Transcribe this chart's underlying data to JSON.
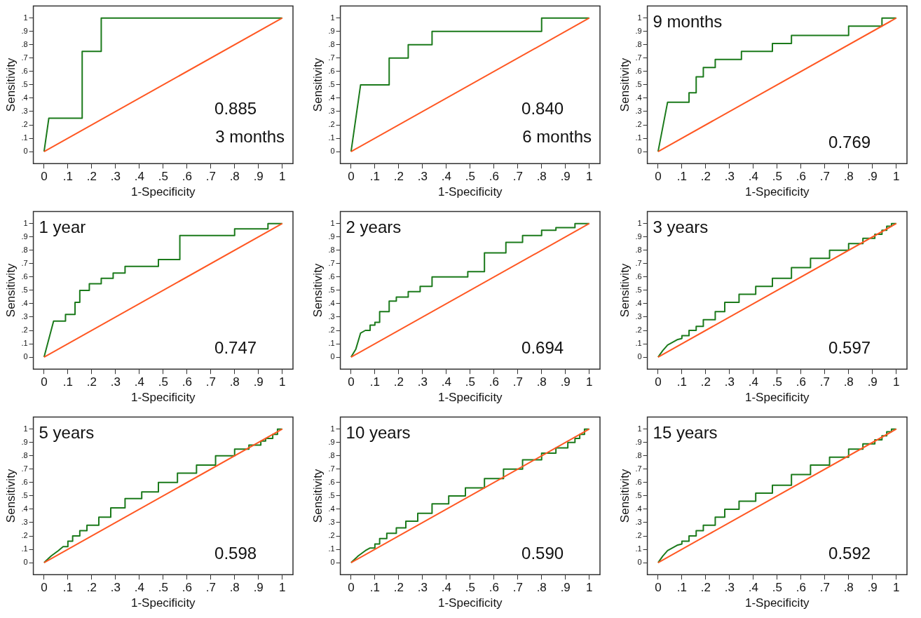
{
  "chart_data": [
    {
      "type": "line",
      "title": "3 months",
      "xlabel": "1-Specificity",
      "ylabel": "Sensitivity",
      "annotations": [
        "0.885"
      ],
      "xlim": [
        -0.045,
        1.045
      ],
      "ylim": [
        -0.09,
        1.09
      ],
      "xticks": [
        {
          "value": 0,
          "label": "0"
        },
        {
          "value": 0.1,
          "label": ".1"
        },
        {
          "value": 0.2,
          "label": ".2"
        },
        {
          "value": 0.3,
          "label": ".3"
        },
        {
          "value": 0.4,
          "label": ".4"
        },
        {
          "value": 0.5,
          "label": ".5"
        },
        {
          "value": 0.6,
          "label": ".6"
        },
        {
          "value": 0.7,
          "label": ".7"
        },
        {
          "value": 0.8,
          "label": ".8"
        },
        {
          "value": 0.9,
          "label": ".9"
        },
        {
          "value": 1,
          "label": "1"
        }
      ],
      "yticks": [
        {
          "value": 0,
          "label": "0"
        },
        {
          "value": 0.1,
          "label": ".1"
        },
        {
          "value": 0.2,
          "label": ".2"
        },
        {
          "value": 0.3,
          "label": ".3"
        },
        {
          "value": 0.4,
          "label": ".4"
        },
        {
          "value": 0.5,
          "label": ".5"
        },
        {
          "value": 0.6,
          "label": ".6"
        },
        {
          "value": 0.7,
          "label": ".7"
        },
        {
          "value": 0.8,
          "label": ".8"
        },
        {
          "value": 0.9,
          "label": ".9"
        },
        {
          "value": 1,
          "label": "1"
        }
      ],
      "series": [
        {
          "color": "#1b7a1b",
          "x": [
            0,
            0.02,
            0.16,
            0.16,
            0.24,
            0.24,
            1
          ],
          "values": [
            0,
            0.25,
            0.25,
            0.75,
            0.75,
            1,
            1
          ]
        },
        {
          "color": "#ff5722",
          "x": [
            0,
            1
          ],
          "values": [
            0,
            1
          ]
        }
      ]
    },
    {
      "type": "line",
      "title": "6 months",
      "xlabel": "1-Specificity",
      "ylabel": "Sensitivity",
      "annotations": [
        "0.840"
      ],
      "xlim": [
        -0.045,
        1.045
      ],
      "ylim": [
        -0.09,
        1.09
      ],
      "xticks": [
        {
          "value": 0,
          "label": "0"
        },
        {
          "value": 0.1,
          "label": ".1"
        },
        {
          "value": 0.2,
          "label": ".2"
        },
        {
          "value": 0.3,
          "label": ".3"
        },
        {
          "value": 0.4,
          "label": ".4"
        },
        {
          "value": 0.5,
          "label": ".5"
        },
        {
          "value": 0.6,
          "label": ".6"
        },
        {
          "value": 0.7,
          "label": ".7"
        },
        {
          "value": 0.8,
          "label": ".8"
        },
        {
          "value": 0.9,
          "label": ".9"
        },
        {
          "value": 1,
          "label": "1"
        }
      ],
      "yticks": [
        {
          "value": 0,
          "label": "0"
        },
        {
          "value": 0.1,
          "label": ".1"
        },
        {
          "value": 0.2,
          "label": ".2"
        },
        {
          "value": 0.3,
          "label": ".3"
        },
        {
          "value": 0.4,
          "label": ".4"
        },
        {
          "value": 0.5,
          "label": ".5"
        },
        {
          "value": 0.6,
          "label": ".6"
        },
        {
          "value": 0.7,
          "label": ".7"
        },
        {
          "value": 0.8,
          "label": ".8"
        },
        {
          "value": 0.9,
          "label": ".9"
        },
        {
          "value": 1,
          "label": "1"
        }
      ],
      "series": [
        {
          "color": "#1b7a1b",
          "x": [
            0,
            0.04,
            0.16,
            0.16,
            0.24,
            0.24,
            0.34,
            0.34,
            0.8,
            0.8,
            1
          ],
          "values": [
            0,
            0.5,
            0.5,
            0.7,
            0.7,
            0.8,
            0.8,
            0.9,
            0.9,
            1,
            1
          ]
        },
        {
          "color": "#ff5722",
          "x": [
            0,
            1
          ],
          "values": [
            0,
            1
          ]
        }
      ]
    },
    {
      "type": "line",
      "title": "9 months",
      "xlabel": "1-Specificity",
      "ylabel": "Sensitivity",
      "annotations": [
        "0.769"
      ],
      "xlim": [
        -0.045,
        1.045
      ],
      "ylim": [
        -0.09,
        1.09
      ],
      "xticks": [
        {
          "value": 0,
          "label": "0"
        },
        {
          "value": 0.1,
          "label": ".1"
        },
        {
          "value": 0.2,
          "label": ".2"
        },
        {
          "value": 0.3,
          "label": ".3"
        },
        {
          "value": 0.4,
          "label": ".4"
        },
        {
          "value": 0.5,
          "label": ".5"
        },
        {
          "value": 0.6,
          "label": ".6"
        },
        {
          "value": 0.7,
          "label": ".7"
        },
        {
          "value": 0.8,
          "label": ".8"
        },
        {
          "value": 0.9,
          "label": ".9"
        },
        {
          "value": 1,
          "label": "1"
        }
      ],
      "yticks": [
        {
          "value": 0,
          "label": "0"
        },
        {
          "value": 0.1,
          "label": ".1"
        },
        {
          "value": 0.2,
          "label": ".2"
        },
        {
          "value": 0.3,
          "label": ".3"
        },
        {
          "value": 0.4,
          "label": ".4"
        },
        {
          "value": 0.5,
          "label": ".5"
        },
        {
          "value": 0.6,
          "label": ".6"
        },
        {
          "value": 0.7,
          "label": ".7"
        },
        {
          "value": 0.8,
          "label": ".8"
        },
        {
          "value": 0.9,
          "label": ".9"
        },
        {
          "value": 1,
          "label": "1"
        }
      ],
      "series": [
        {
          "color": "#1b7a1b",
          "x": [
            0,
            0.04,
            0.13,
            0.13,
            0.16,
            0.16,
            0.19,
            0.19,
            0.24,
            0.24,
            0.35,
            0.35,
            0.48,
            0.48,
            0.56,
            0.56,
            0.8,
            0.8,
            0.94,
            0.94,
            1
          ],
          "values": [
            0,
            0.37,
            0.37,
            0.44,
            0.44,
            0.56,
            0.56,
            0.63,
            0.63,
            0.69,
            0.69,
            0.75,
            0.75,
            0.81,
            0.81,
            0.87,
            0.87,
            0.94,
            0.94,
            1,
            1
          ]
        },
        {
          "color": "#ff5722",
          "x": [
            0,
            1
          ],
          "values": [
            0,
            1
          ]
        }
      ]
    },
    {
      "type": "line",
      "title": "1 year",
      "xlabel": "1-Specificity",
      "ylabel": "Sensitivity",
      "annotations": [
        "0.747"
      ],
      "xlim": [
        -0.045,
        1.045
      ],
      "ylim": [
        -0.09,
        1.09
      ],
      "xticks": [
        {
          "value": 0,
          "label": "0"
        },
        {
          "value": 0.1,
          "label": ".1"
        },
        {
          "value": 0.2,
          "label": ".2"
        },
        {
          "value": 0.3,
          "label": ".3"
        },
        {
          "value": 0.4,
          "label": ".4"
        },
        {
          "value": 0.5,
          "label": ".5"
        },
        {
          "value": 0.6,
          "label": ".6"
        },
        {
          "value": 0.7,
          "label": ".7"
        },
        {
          "value": 0.8,
          "label": ".8"
        },
        {
          "value": 0.9,
          "label": ".9"
        },
        {
          "value": 1,
          "label": "1"
        }
      ],
      "yticks": [
        {
          "value": 0,
          "label": "0"
        },
        {
          "value": 0.1,
          "label": ".1"
        },
        {
          "value": 0.2,
          "label": ".2"
        },
        {
          "value": 0.3,
          "label": ".3"
        },
        {
          "value": 0.4,
          "label": ".4"
        },
        {
          "value": 0.5,
          "label": ".5"
        },
        {
          "value": 0.6,
          "label": ".6"
        },
        {
          "value": 0.7,
          "label": ".7"
        },
        {
          "value": 0.8,
          "label": ".8"
        },
        {
          "value": 0.9,
          "label": ".9"
        },
        {
          "value": 1,
          "label": "1"
        }
      ],
      "series": [
        {
          "color": "#1b7a1b",
          "x": [
            0,
            0.04,
            0.09,
            0.09,
            0.13,
            0.13,
            0.15,
            0.15,
            0.19,
            0.19,
            0.24,
            0.24,
            0.29,
            0.29,
            0.34,
            0.34,
            0.48,
            0.48,
            0.57,
            0.57,
            0.8,
            0.8,
            0.94,
            0.94,
            1
          ],
          "values": [
            0,
            0.27,
            0.27,
            0.32,
            0.32,
            0.41,
            0.41,
            0.5,
            0.5,
            0.55,
            0.55,
            0.59,
            0.59,
            0.63,
            0.63,
            0.68,
            0.68,
            0.73,
            0.73,
            0.91,
            0.91,
            0.96,
            0.96,
            1,
            1
          ]
        },
        {
          "color": "#ff5722",
          "x": [
            0,
            1
          ],
          "values": [
            0,
            1
          ]
        }
      ]
    },
    {
      "type": "line",
      "title": "2 years",
      "xlabel": "1-Specificity",
      "ylabel": "Sensitivity",
      "annotations": [
        "0.694"
      ],
      "xlim": [
        -0.045,
        1.045
      ],
      "ylim": [
        -0.09,
        1.09
      ],
      "xticks": [
        {
          "value": 0,
          "label": "0"
        },
        {
          "value": 0.1,
          "label": ".1"
        },
        {
          "value": 0.2,
          "label": ".2"
        },
        {
          "value": 0.3,
          "label": ".3"
        },
        {
          "value": 0.4,
          "label": ".4"
        },
        {
          "value": 0.5,
          "label": ".5"
        },
        {
          "value": 0.6,
          "label": ".6"
        },
        {
          "value": 0.7,
          "label": ".7"
        },
        {
          "value": 0.8,
          "label": ".8"
        },
        {
          "value": 0.9,
          "label": ".9"
        },
        {
          "value": 1,
          "label": "1"
        }
      ],
      "yticks": [
        {
          "value": 0,
          "label": "0"
        },
        {
          "value": 0.1,
          "label": ".1"
        },
        {
          "value": 0.2,
          "label": ".2"
        },
        {
          "value": 0.3,
          "label": ".3"
        },
        {
          "value": 0.4,
          "label": ".4"
        },
        {
          "value": 0.5,
          "label": ".5"
        },
        {
          "value": 0.6,
          "label": ".6"
        },
        {
          "value": 0.7,
          "label": ".7"
        },
        {
          "value": 0.8,
          "label": ".8"
        },
        {
          "value": 0.9,
          "label": ".9"
        },
        {
          "value": 1,
          "label": "1"
        }
      ],
      "series": [
        {
          "color": "#1b7a1b",
          "x": [
            0,
            0.02,
            0.04,
            0.06,
            0.08,
            0.08,
            0.1,
            0.1,
            0.12,
            0.12,
            0.16,
            0.16,
            0.19,
            0.19,
            0.24,
            0.24,
            0.29,
            0.29,
            0.34,
            0.34,
            0.49,
            0.49,
            0.56,
            0.56,
            0.65,
            0.65,
            0.72,
            0.72,
            0.8,
            0.8,
            0.86,
            0.86,
            0.94,
            0.94,
            1
          ],
          "values": [
            0,
            0.06,
            0.18,
            0.2,
            0.2,
            0.24,
            0.24,
            0.26,
            0.26,
            0.34,
            0.34,
            0.42,
            0.42,
            0.45,
            0.45,
            0.49,
            0.49,
            0.53,
            0.53,
            0.6,
            0.6,
            0.64,
            0.64,
            0.78,
            0.78,
            0.86,
            0.86,
            0.91,
            0.91,
            0.95,
            0.95,
            0.97,
            0.97,
            1,
            1
          ]
        },
        {
          "color": "#ff5722",
          "x": [
            0,
            1
          ],
          "values": [
            0,
            1
          ]
        }
      ]
    },
    {
      "type": "line",
      "title": "3 years",
      "xlabel": "1-Specificity",
      "ylabel": "Sensitivity",
      "annotations": [
        "0.597"
      ],
      "xlim": [
        -0.045,
        1.045
      ],
      "ylim": [
        -0.09,
        1.09
      ],
      "xticks": [
        {
          "value": 0,
          "label": "0"
        },
        {
          "value": 0.1,
          "label": ".1"
        },
        {
          "value": 0.2,
          "label": ".2"
        },
        {
          "value": 0.3,
          "label": ".3"
        },
        {
          "value": 0.4,
          "label": ".4"
        },
        {
          "value": 0.5,
          "label": ".5"
        },
        {
          "value": 0.6,
          "label": ".6"
        },
        {
          "value": 0.7,
          "label": ".7"
        },
        {
          "value": 0.8,
          "label": ".8"
        },
        {
          "value": 0.9,
          "label": ".9"
        },
        {
          "value": 1,
          "label": "1"
        }
      ],
      "yticks": [
        {
          "value": 0,
          "label": "0"
        },
        {
          "value": 0.1,
          "label": ".1"
        },
        {
          "value": 0.2,
          "label": ".2"
        },
        {
          "value": 0.3,
          "label": ".3"
        },
        {
          "value": 0.4,
          "label": ".4"
        },
        {
          "value": 0.5,
          "label": ".5"
        },
        {
          "value": 0.6,
          "label": ".6"
        },
        {
          "value": 0.7,
          "label": ".7"
        },
        {
          "value": 0.8,
          "label": ".8"
        },
        {
          "value": 0.9,
          "label": ".9"
        },
        {
          "value": 1,
          "label": "1"
        }
      ],
      "series": [
        {
          "color": "#1b7a1b",
          "x": [
            0,
            0.02,
            0.04,
            0.06,
            0.08,
            0.1,
            0.1,
            0.13,
            0.13,
            0.16,
            0.16,
            0.19,
            0.19,
            0.24,
            0.24,
            0.28,
            0.28,
            0.34,
            0.34,
            0.41,
            0.41,
            0.48,
            0.48,
            0.56,
            0.56,
            0.64,
            0.64,
            0.72,
            0.72,
            0.8,
            0.8,
            0.86,
            0.86,
            0.91,
            0.91,
            0.94,
            0.94,
            0.96,
            0.96,
            0.98,
            0.98,
            1
          ],
          "values": [
            0,
            0.05,
            0.09,
            0.11,
            0.13,
            0.14,
            0.16,
            0.16,
            0.2,
            0.2,
            0.23,
            0.23,
            0.28,
            0.28,
            0.34,
            0.34,
            0.41,
            0.41,
            0.47,
            0.47,
            0.53,
            0.53,
            0.59,
            0.59,
            0.67,
            0.67,
            0.74,
            0.74,
            0.8,
            0.8,
            0.85,
            0.85,
            0.89,
            0.89,
            0.92,
            0.92,
            0.95,
            0.95,
            0.98,
            0.98,
            1,
            1
          ]
        },
        {
          "color": "#ff5722",
          "x": [
            0,
            1
          ],
          "values": [
            0,
            1
          ]
        }
      ]
    },
    {
      "type": "line",
      "title": "5 years",
      "xlabel": "1-Specificity",
      "ylabel": "Sensitivity",
      "annotations": [
        "0.598"
      ],
      "xlim": [
        -0.045,
        1.045
      ],
      "ylim": [
        -0.09,
        1.09
      ],
      "xticks": [
        {
          "value": 0,
          "label": "0"
        },
        {
          "value": 0.1,
          "label": ".1"
        },
        {
          "value": 0.2,
          "label": ".2"
        },
        {
          "value": 0.3,
          "label": ".3"
        },
        {
          "value": 0.4,
          "label": ".4"
        },
        {
          "value": 0.5,
          "label": ".5"
        },
        {
          "value": 0.6,
          "label": ".6"
        },
        {
          "value": 0.7,
          "label": ".7"
        },
        {
          "value": 0.8,
          "label": ".8"
        },
        {
          "value": 0.9,
          "label": ".9"
        },
        {
          "value": 1,
          "label": "1"
        }
      ],
      "yticks": [
        {
          "value": 0,
          "label": "0"
        },
        {
          "value": 0.1,
          "label": ".1"
        },
        {
          "value": 0.2,
          "label": ".2"
        },
        {
          "value": 0.3,
          "label": ".3"
        },
        {
          "value": 0.4,
          "label": ".4"
        },
        {
          "value": 0.5,
          "label": ".5"
        },
        {
          "value": 0.6,
          "label": ".6"
        },
        {
          "value": 0.7,
          "label": ".7"
        },
        {
          "value": 0.8,
          "label": ".8"
        },
        {
          "value": 0.9,
          "label": ".9"
        },
        {
          "value": 1,
          "label": "1"
        }
      ],
      "series": [
        {
          "color": "#1b7a1b",
          "x": [
            0,
            0.03,
            0.06,
            0.08,
            0.1,
            0.1,
            0.12,
            0.12,
            0.15,
            0.15,
            0.18,
            0.18,
            0.23,
            0.23,
            0.28,
            0.28,
            0.34,
            0.34,
            0.41,
            0.41,
            0.48,
            0.48,
            0.56,
            0.56,
            0.64,
            0.64,
            0.72,
            0.72,
            0.8,
            0.8,
            0.86,
            0.86,
            0.91,
            0.91,
            0.93,
            0.93,
            0.96,
            0.96,
            0.98,
            0.98,
            1
          ],
          "values": [
            0,
            0.05,
            0.09,
            0.12,
            0.12,
            0.16,
            0.16,
            0.2,
            0.2,
            0.24,
            0.24,
            0.28,
            0.28,
            0.34,
            0.34,
            0.41,
            0.41,
            0.48,
            0.48,
            0.53,
            0.53,
            0.6,
            0.6,
            0.67,
            0.67,
            0.73,
            0.73,
            0.8,
            0.8,
            0.85,
            0.85,
            0.88,
            0.88,
            0.91,
            0.91,
            0.93,
            0.93,
            0.96,
            0.96,
            1,
            1
          ]
        },
        {
          "color": "#ff5722",
          "x": [
            0,
            1
          ],
          "values": [
            0,
            1
          ]
        }
      ]
    },
    {
      "type": "line",
      "title": "10 years",
      "xlabel": "1-Specificity",
      "ylabel": "Sensitivity",
      "annotations": [
        "0.590"
      ],
      "xlim": [
        -0.045,
        1.045
      ],
      "ylim": [
        -0.09,
        1.09
      ],
      "xticks": [
        {
          "value": 0,
          "label": "0"
        },
        {
          "value": 0.1,
          "label": ".1"
        },
        {
          "value": 0.2,
          "label": ".2"
        },
        {
          "value": 0.3,
          "label": ".3"
        },
        {
          "value": 0.4,
          "label": ".4"
        },
        {
          "value": 0.5,
          "label": ".5"
        },
        {
          "value": 0.6,
          "label": ".6"
        },
        {
          "value": 0.7,
          "label": ".7"
        },
        {
          "value": 0.8,
          "label": ".8"
        },
        {
          "value": 0.9,
          "label": ".9"
        },
        {
          "value": 1,
          "label": "1"
        }
      ],
      "yticks": [
        {
          "value": 0,
          "label": "0"
        },
        {
          "value": 0.1,
          "label": ".1"
        },
        {
          "value": 0.2,
          "label": ".2"
        },
        {
          "value": 0.3,
          "label": ".3"
        },
        {
          "value": 0.4,
          "label": ".4"
        },
        {
          "value": 0.5,
          "label": ".5"
        },
        {
          "value": 0.6,
          "label": ".6"
        },
        {
          "value": 0.7,
          "label": ".7"
        },
        {
          "value": 0.8,
          "label": ".8"
        },
        {
          "value": 0.9,
          "label": ".9"
        },
        {
          "value": 1,
          "label": "1"
        }
      ],
      "series": [
        {
          "color": "#1b7a1b",
          "x": [
            0,
            0.03,
            0.06,
            0.08,
            0.1,
            0.1,
            0.12,
            0.12,
            0.15,
            0.15,
            0.19,
            0.19,
            0.23,
            0.23,
            0.28,
            0.28,
            0.34,
            0.34,
            0.41,
            0.41,
            0.48,
            0.48,
            0.56,
            0.56,
            0.64,
            0.64,
            0.72,
            0.72,
            0.8,
            0.8,
            0.86,
            0.86,
            0.91,
            0.91,
            0.94,
            0.94,
            0.96,
            0.96,
            0.98,
            0.98,
            1
          ],
          "values": [
            0,
            0.05,
            0.09,
            0.11,
            0.11,
            0.14,
            0.14,
            0.18,
            0.18,
            0.22,
            0.22,
            0.26,
            0.26,
            0.31,
            0.31,
            0.37,
            0.37,
            0.44,
            0.44,
            0.5,
            0.5,
            0.56,
            0.56,
            0.63,
            0.63,
            0.7,
            0.7,
            0.77,
            0.77,
            0.82,
            0.82,
            0.86,
            0.86,
            0.9,
            0.9,
            0.93,
            0.93,
            0.96,
            0.96,
            1,
            1
          ]
        },
        {
          "color": "#ff5722",
          "x": [
            0,
            1
          ],
          "values": [
            0,
            1
          ]
        }
      ]
    },
    {
      "type": "line",
      "title": "15 years",
      "xlabel": "1-Specificity",
      "ylabel": "Sensitivity",
      "annotations": [
        "0.592"
      ],
      "xlim": [
        -0.045,
        1.045
      ],
      "ylim": [
        -0.09,
        1.09
      ],
      "xticks": [
        {
          "value": 0,
          "label": "0"
        },
        {
          "value": 0.1,
          "label": ".1"
        },
        {
          "value": 0.2,
          "label": ".2"
        },
        {
          "value": 0.3,
          "label": ".3"
        },
        {
          "value": 0.4,
          "label": ".4"
        },
        {
          "value": 0.5,
          "label": ".5"
        },
        {
          "value": 0.6,
          "label": ".6"
        },
        {
          "value": 0.7,
          "label": ".7"
        },
        {
          "value": 0.8,
          "label": ".8"
        },
        {
          "value": 0.9,
          "label": ".9"
        },
        {
          "value": 1,
          "label": "1"
        }
      ],
      "yticks": [
        {
          "value": 0,
          "label": "0"
        },
        {
          "value": 0.1,
          "label": ".1"
        },
        {
          "value": 0.2,
          "label": ".2"
        },
        {
          "value": 0.3,
          "label": ".3"
        },
        {
          "value": 0.4,
          "label": ".4"
        },
        {
          "value": 0.5,
          "label": ".5"
        },
        {
          "value": 0.6,
          "label": ".6"
        },
        {
          "value": 0.7,
          "label": ".7"
        },
        {
          "value": 0.8,
          "label": ".8"
        },
        {
          "value": 0.9,
          "label": ".9"
        },
        {
          "value": 1,
          "label": "1"
        }
      ],
      "series": [
        {
          "color": "#1b7a1b",
          "x": [
            0,
            0.02,
            0.04,
            0.06,
            0.08,
            0.1,
            0.1,
            0.13,
            0.13,
            0.16,
            0.16,
            0.19,
            0.19,
            0.24,
            0.24,
            0.28,
            0.28,
            0.34,
            0.34,
            0.41,
            0.41,
            0.48,
            0.48,
            0.56,
            0.56,
            0.64,
            0.64,
            0.72,
            0.72,
            0.8,
            0.8,
            0.86,
            0.86,
            0.91,
            0.91,
            0.94,
            0.94,
            0.96,
            0.96,
            0.98,
            0.98,
            1
          ],
          "values": [
            0,
            0.05,
            0.09,
            0.11,
            0.13,
            0.14,
            0.16,
            0.16,
            0.2,
            0.2,
            0.24,
            0.24,
            0.28,
            0.28,
            0.34,
            0.34,
            0.4,
            0.4,
            0.46,
            0.46,
            0.52,
            0.52,
            0.58,
            0.58,
            0.66,
            0.66,
            0.73,
            0.73,
            0.79,
            0.79,
            0.85,
            0.85,
            0.89,
            0.89,
            0.92,
            0.92,
            0.95,
            0.95,
            0.98,
            0.98,
            1,
            1
          ]
        },
        {
          "color": "#ff5722",
          "x": [
            0,
            1
          ],
          "values": [
            0,
            1
          ]
        }
      ]
    }
  ]
}
